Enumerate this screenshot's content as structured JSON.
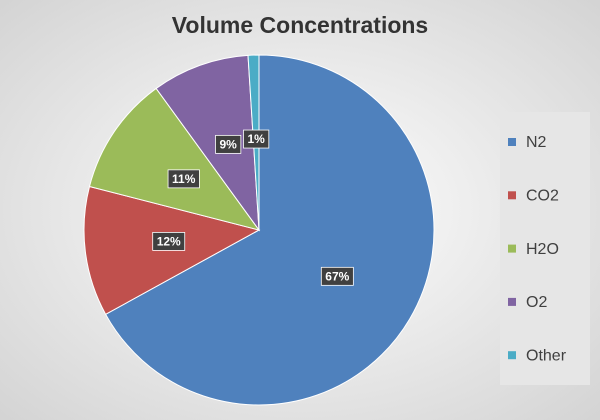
{
  "chart_data": {
    "type": "pie",
    "title": "Volume Concentrations",
    "categories": [
      "N2",
      "CO2",
      "H2O",
      "O2",
      "Other"
    ],
    "values": [
      67,
      12,
      11,
      9,
      1
    ],
    "value_labels": [
      "67%",
      "12%",
      "11%",
      "9%",
      "1%"
    ],
    "colors": [
      "#4f81bd",
      "#c0504d",
      "#9bbb59",
      "#8064a2",
      "#4bacc6"
    ],
    "legend": "right"
  }
}
